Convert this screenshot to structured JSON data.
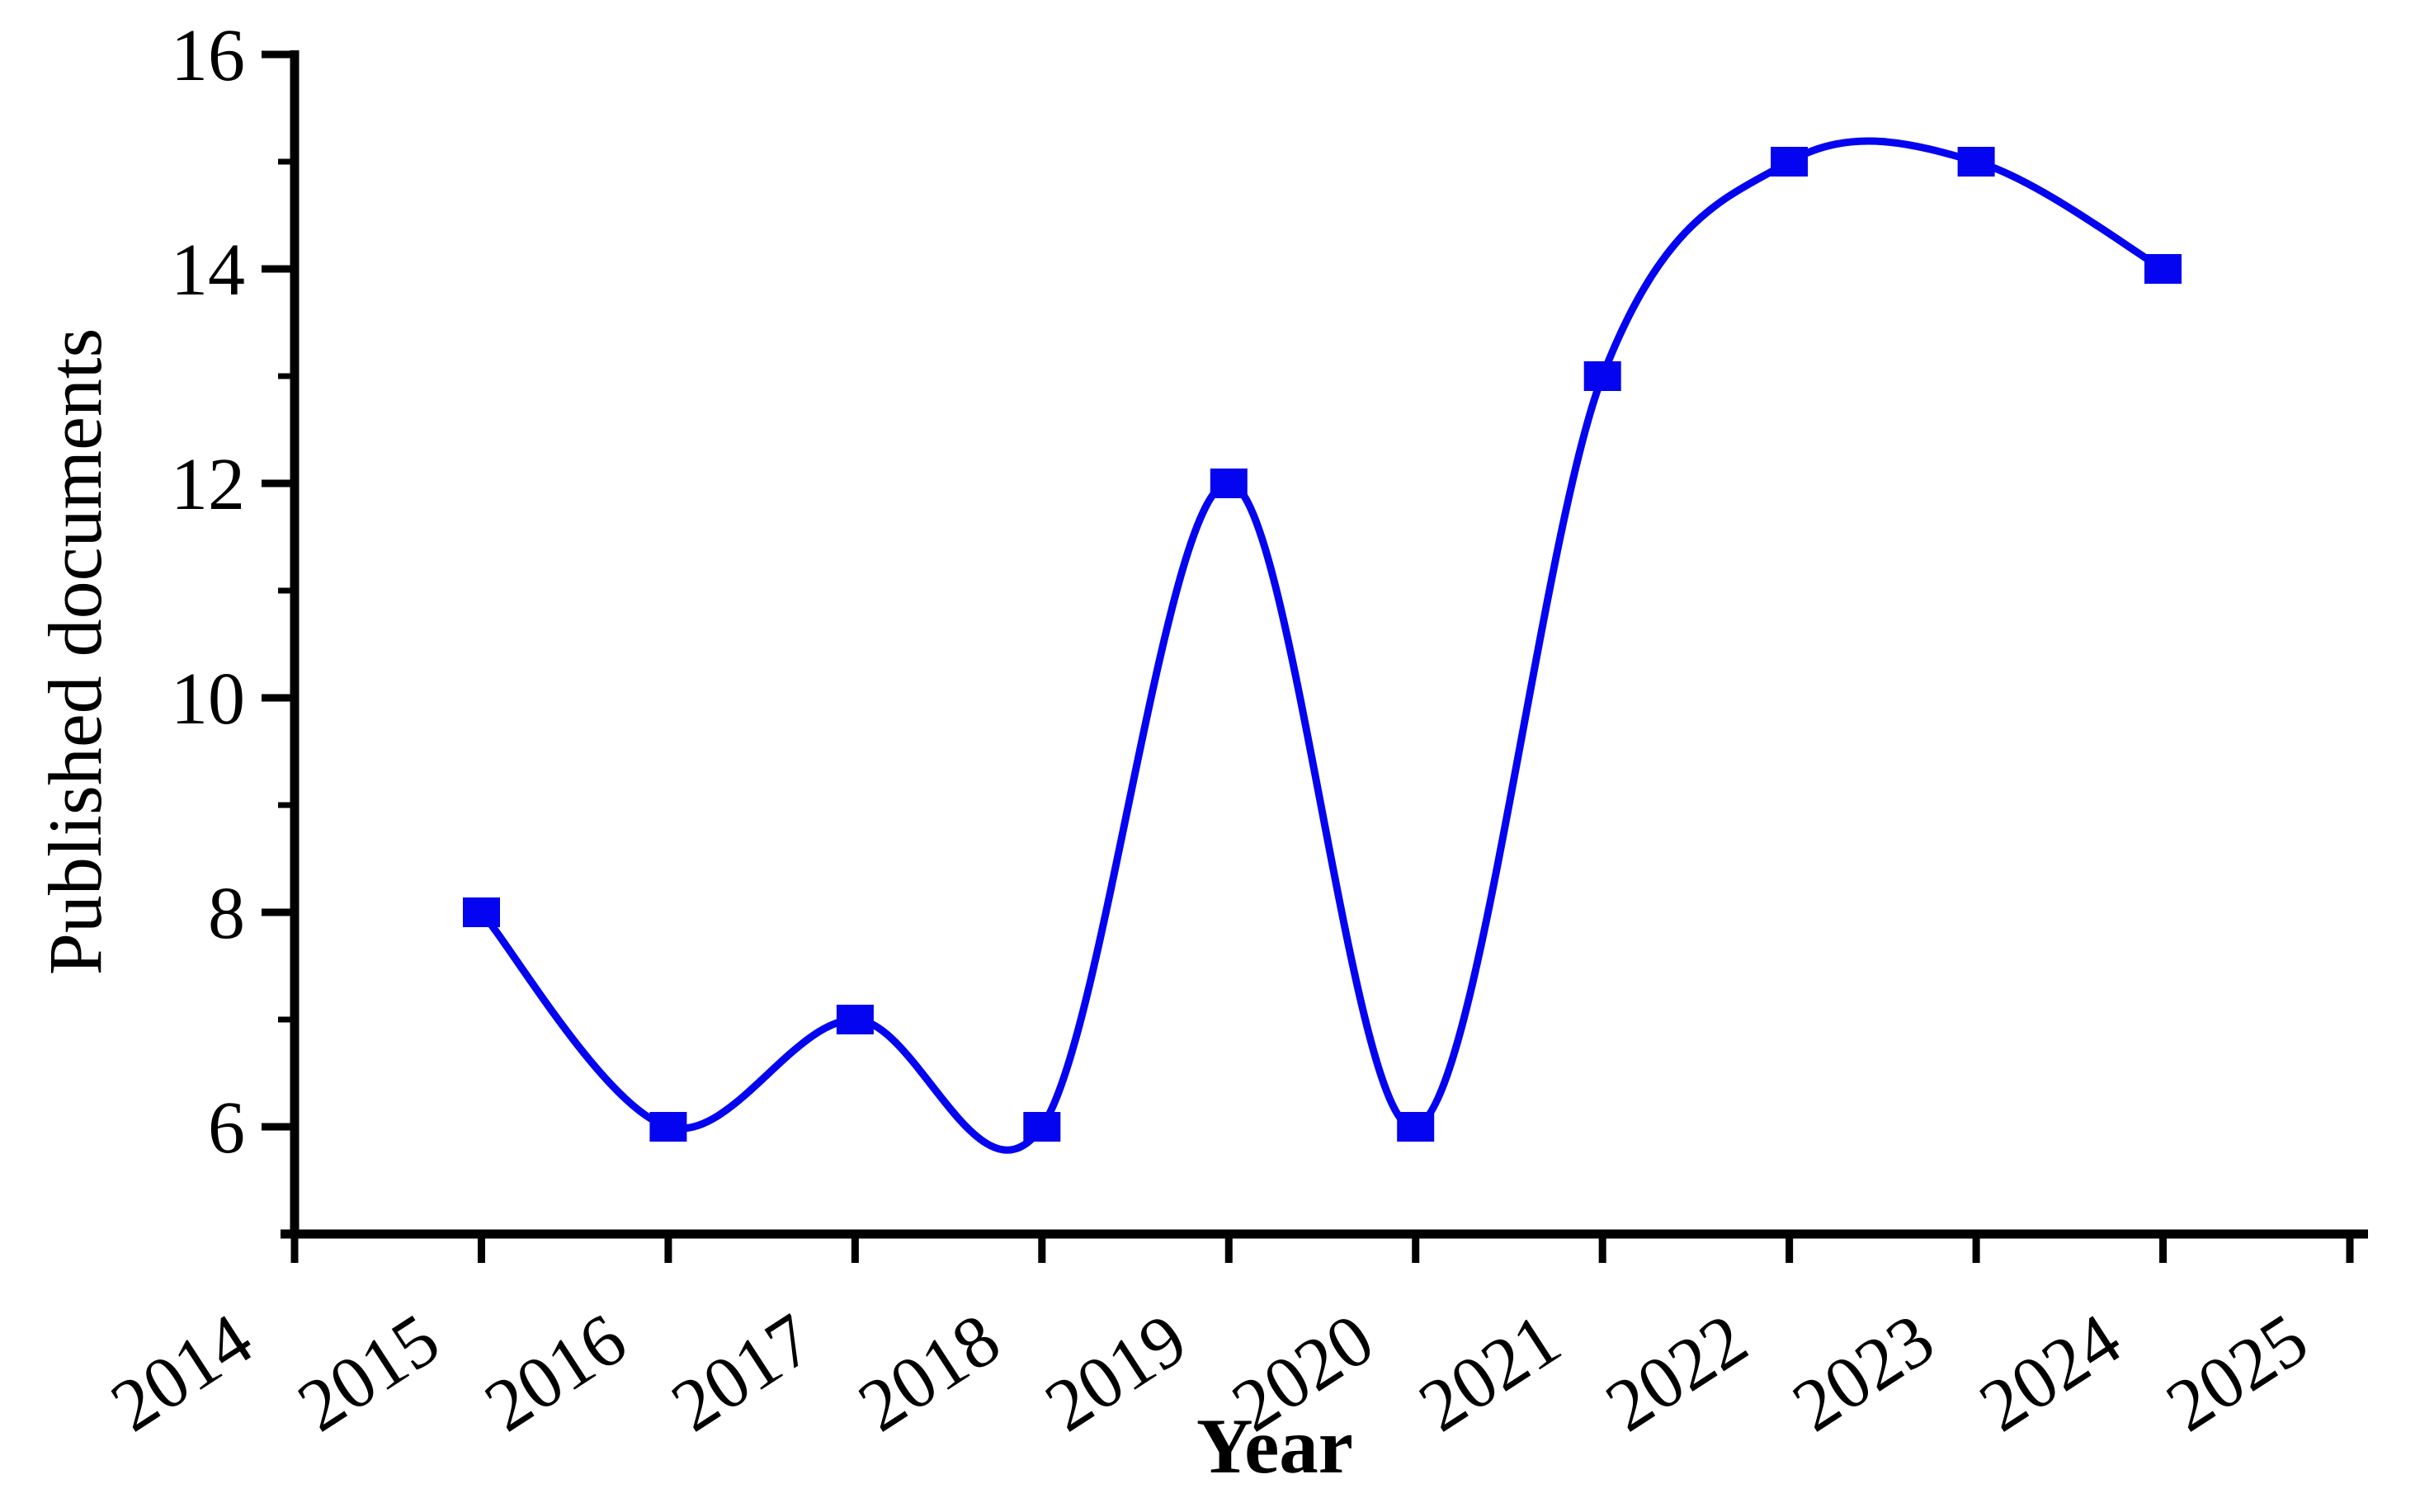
{
  "figure": {
    "background": "#ffffff"
  },
  "chart_data": {
    "type": "line",
    "title": "",
    "xlabel": "Year",
    "ylabel": "Published documents",
    "x": [
      2015,
      2016,
      2017,
      2018,
      2019,
      2020,
      2021,
      2022,
      2023,
      2024
    ],
    "series": [
      {
        "name": "Published documents",
        "values": [
          8,
          6,
          7,
          6,
          12,
          6,
          13,
          15,
          15,
          14
        ]
      }
    ],
    "xlim": [
      2014,
      2025
    ],
    "ylim": [
      5,
      16
    ],
    "x_tick_labels": [
      "2014",
      "2015",
      "2016",
      "2017",
      "2018",
      "2019",
      "2020",
      "2021",
      "2022",
      "2023",
      "2024",
      "2025"
    ],
    "y_major_tick_labels": [
      "6",
      "8",
      "10",
      "12",
      "14",
      "16"
    ],
    "y_major_ticks": [
      6,
      8,
      10,
      12,
      14,
      16
    ],
    "y_minor_ticks": [
      7,
      9,
      11,
      13,
      15
    ],
    "x_tick_label_rotation_deg": -33,
    "curve_style": "smooth-spline",
    "marker_shape": "filled-square",
    "line_color": "#0404F0",
    "marker_color": "#0404F0",
    "axis_color": "#000000",
    "grid": false,
    "legend_position": "none"
  }
}
